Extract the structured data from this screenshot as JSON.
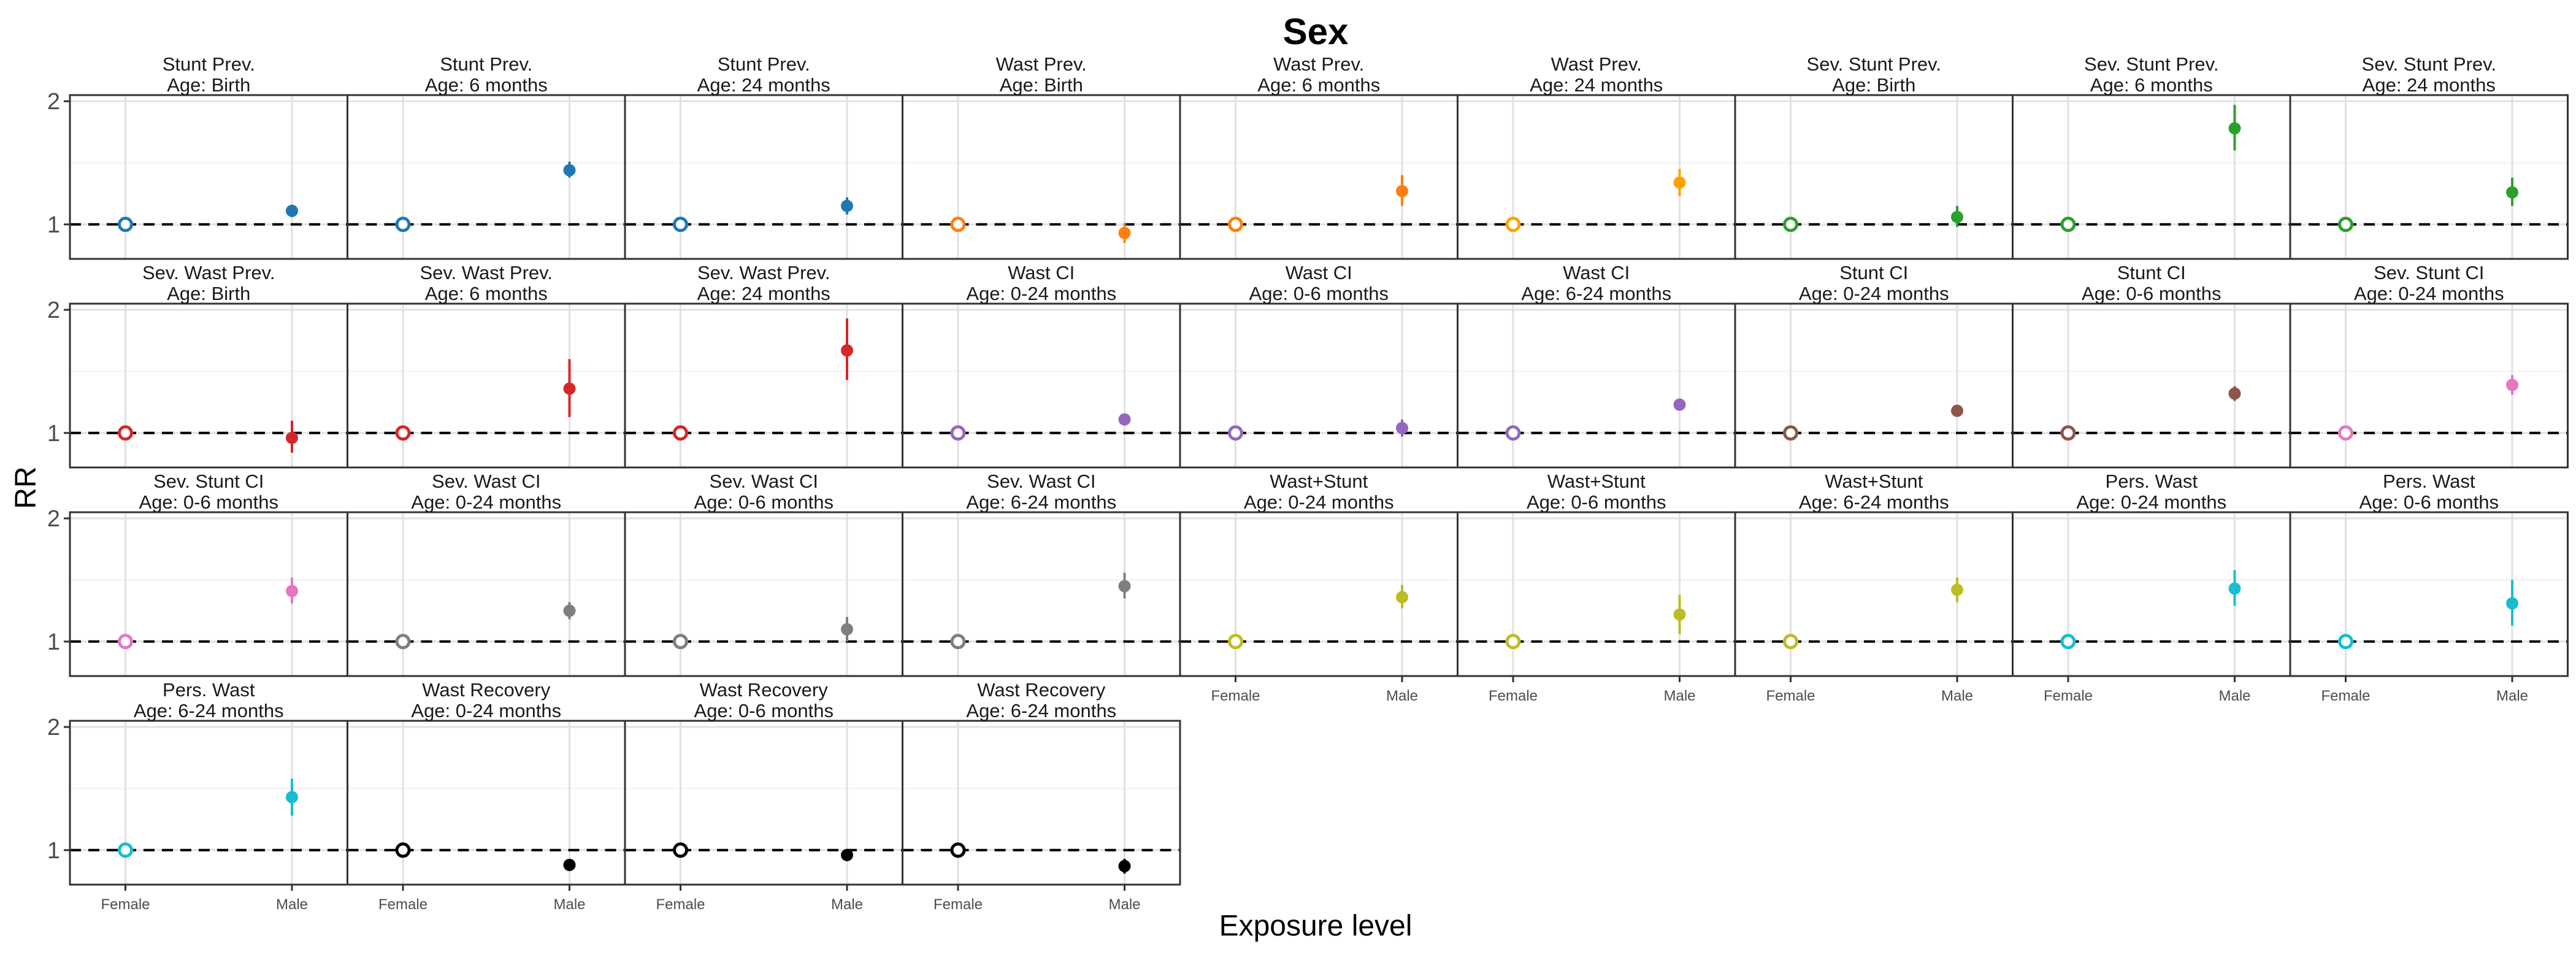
{
  "chart_data": {
    "type": "scatter",
    "title": "Sex",
    "xlabel": "Exposure level",
    "ylabel": "RR",
    "categories": [
      "Female",
      "Male"
    ],
    "yticks": [
      1,
      2
    ],
    "ylim": [
      0.72,
      2.05
    ],
    "grid": true,
    "reference_line": 1,
    "panels": [
      {
        "title1": "Stunt Prev.",
        "title2": "Age: Birth",
        "color": "#1F78B4",
        "male": 1.11,
        "lo": 1.06,
        "hi": 1.16
      },
      {
        "title1": "Stunt Prev.",
        "title2": "Age: 6 months",
        "color": "#1F78B4",
        "male": 1.44,
        "lo": 1.38,
        "hi": 1.51
      },
      {
        "title1": "Stunt Prev.",
        "title2": "Age: 24 months",
        "color": "#1F78B4",
        "male": 1.15,
        "lo": 1.08,
        "hi": 1.22
      },
      {
        "title1": "Wast Prev.",
        "title2": "Age: Birth",
        "color": "#FF7F0E",
        "male": 0.93,
        "lo": 0.85,
        "hi": 1.01
      },
      {
        "title1": "Wast Prev.",
        "title2": "Age: 6 months",
        "color": "#FF7F0E",
        "male": 1.27,
        "lo": 1.15,
        "hi": 1.4
      },
      {
        "title1": "Wast Prev.",
        "title2": "Age: 24 months",
        "color": "#FFA200",
        "male": 1.34,
        "lo": 1.23,
        "hi": 1.45
      },
      {
        "title1": "Sev. Stunt Prev.",
        "title2": "Age: Birth",
        "color": "#2CA02C",
        "male": 1.06,
        "lo": 0.98,
        "hi": 1.15
      },
      {
        "title1": "Sev. Stunt Prev.",
        "title2": "Age: 6 months",
        "color": "#2CA02C",
        "male": 1.78,
        "lo": 1.6,
        "hi": 1.97
      },
      {
        "title1": "Sev. Stunt Prev.",
        "title2": "Age: 24 months",
        "color": "#2CA02C",
        "male": 1.26,
        "lo": 1.15,
        "hi": 1.38
      },
      {
        "title1": "Sev. Wast Prev.",
        "title2": "Age: Birth",
        "color": "#D62728",
        "male": 0.96,
        "lo": 0.84,
        "hi": 1.1
      },
      {
        "title1": "Sev. Wast Prev.",
        "title2": "Age: 6 months",
        "color": "#D62728",
        "male": 1.36,
        "lo": 1.13,
        "hi": 1.6
      },
      {
        "title1": "Sev. Wast Prev.",
        "title2": "Age: 24 months",
        "color": "#D62728",
        "male": 1.67,
        "lo": 1.43,
        "hi": 1.93
      },
      {
        "title1": "Wast CI",
        "title2": "Age: 0-24 months",
        "color": "#9467BD",
        "male": 1.11,
        "lo": 1.07,
        "hi": 1.15
      },
      {
        "title1": "Wast CI",
        "title2": "Age: 0-6 months",
        "color": "#9467BD",
        "male": 1.04,
        "lo": 0.97,
        "hi": 1.11
      },
      {
        "title1": "Wast CI",
        "title2": "Age: 6-24 months",
        "color": "#9467BD",
        "male": 1.23,
        "lo": 1.18,
        "hi": 1.28
      },
      {
        "title1": "Stunt CI",
        "title2": "Age: 0-24 months",
        "color": "#8C564B",
        "male": 1.18,
        "lo": 1.14,
        "hi": 1.22
      },
      {
        "title1": "Stunt CI",
        "title2": "Age: 0-6 months",
        "color": "#8C564B",
        "male": 1.32,
        "lo": 1.26,
        "hi": 1.38
      },
      {
        "title1": "Sev. Stunt CI",
        "title2": "Age: 0-24 months",
        "color": "#E377C2",
        "male": 1.39,
        "lo": 1.31,
        "hi": 1.47
      },
      {
        "title1": "Sev. Stunt CI",
        "title2": "Age: 0-6 months",
        "color": "#E377C2",
        "male": 1.41,
        "lo": 1.31,
        "hi": 1.52
      },
      {
        "title1": "Sev. Wast CI",
        "title2": "Age: 0-24 months",
        "color": "#7F7F7F",
        "male": 1.25,
        "lo": 1.18,
        "hi": 1.32
      },
      {
        "title1": "Sev. Wast CI",
        "title2": "Age: 0-6 months",
        "color": "#7F7F7F",
        "male": 1.1,
        "lo": 1.0,
        "hi": 1.2
      },
      {
        "title1": "Sev. Wast CI",
        "title2": "Age: 6-24 months",
        "color": "#7F7F7F",
        "male": 1.45,
        "lo": 1.35,
        "hi": 1.56
      },
      {
        "title1": "Wast+Stunt",
        "title2": "Age: 0-24 months",
        "color": "#BCBD22",
        "male": 1.36,
        "lo": 1.27,
        "hi": 1.46
      },
      {
        "title1": "Wast+Stunt",
        "title2": "Age: 0-6 months",
        "color": "#BCBD22",
        "male": 1.22,
        "lo": 1.06,
        "hi": 1.38
      },
      {
        "title1": "Wast+Stunt",
        "title2": "Age: 6-24 months",
        "color": "#BCBD22",
        "male": 1.42,
        "lo": 1.32,
        "hi": 1.52
      },
      {
        "title1": "Pers. Wast",
        "title2": "Age: 0-24 months",
        "color": "#17BECF",
        "male": 1.43,
        "lo": 1.29,
        "hi": 1.58
      },
      {
        "title1": "Pers. Wast",
        "title2": "Age: 0-6 months",
        "color": "#17BECF",
        "male": 1.31,
        "lo": 1.13,
        "hi": 1.5
      },
      {
        "title1": "Pers. Wast",
        "title2": "Age: 6-24 months",
        "color": "#17BECF",
        "male": 1.43,
        "lo": 1.28,
        "hi": 1.58
      },
      {
        "title1": "Wast Recovery",
        "title2": "Age: 0-24 months",
        "color": "#000000",
        "male": 0.88,
        "lo": 0.86,
        "hi": 0.9
      },
      {
        "title1": "Wast Recovery",
        "title2": "Age: 0-6 months",
        "color": "#000000",
        "male": 0.96,
        "lo": 0.93,
        "hi": 0.99
      },
      {
        "title1": "Wast Recovery",
        "title2": "Age: 6-24 months",
        "color": "#000000",
        "male": 0.87,
        "lo": 0.81,
        "hi": 0.93
      }
    ]
  }
}
